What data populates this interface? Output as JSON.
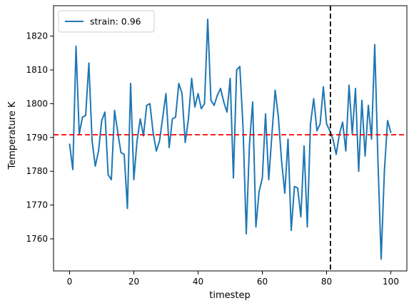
{
  "chart_data": {
    "type": "line",
    "title": "",
    "xlabel": "timestep",
    "ylabel": "Temperature K",
    "xlim": [
      -5,
      105
    ],
    "ylim": [
      1750.5,
      1829
    ],
    "xticks": [
      0,
      20,
      40,
      60,
      80,
      100
    ],
    "yticks": [
      1760,
      1770,
      1780,
      1790,
      1800,
      1810,
      1820
    ],
    "grid": false,
    "legend_position": "top-left",
    "series": [
      {
        "name": "strain: 0.96",
        "color": "#1f77b4",
        "x": [
          0,
          1,
          2,
          3,
          4,
          5,
          6,
          7,
          8,
          9,
          10,
          11,
          12,
          13,
          14,
          15,
          16,
          17,
          18,
          19,
          20,
          21,
          22,
          23,
          24,
          25,
          26,
          27,
          28,
          29,
          30,
          31,
          32,
          33,
          34,
          35,
          36,
          37,
          38,
          39,
          40,
          41,
          42,
          43,
          44,
          45,
          46,
          47,
          48,
          49,
          50,
          51,
          52,
          53,
          54,
          55,
          56,
          57,
          58,
          59,
          60,
          61,
          62,
          63,
          64,
          65,
          66,
          67,
          68,
          69,
          70,
          71,
          72,
          73,
          74,
          75,
          76,
          77,
          78,
          79,
          80,
          81,
          82,
          83,
          84,
          85,
          86,
          87,
          88,
          89,
          90,
          91,
          92,
          93,
          94,
          95,
          96,
          97,
          98,
          99,
          100
        ],
        "y": [
          1788,
          1780.5,
          1817,
          1791,
          1796,
          1796.5,
          1812,
          1789,
          1781.5,
          1786,
          1795,
          1797.5,
          1779,
          1777.5,
          1798,
          1791.5,
          1785.5,
          1785,
          1769,
          1806,
          1777.5,
          1789,
          1795.5,
          1790.5,
          1799.5,
          1800,
          1791.5,
          1786,
          1789,
          1796,
          1803,
          1787,
          1795.5,
          1796,
          1806,
          1803,
          1788.5,
          1795.5,
          1807.5,
          1799,
          1803,
          1798.5,
          1800,
          1825,
          1801,
          1799.5,
          1802.5,
          1804.5,
          1800.5,
          1797.5,
          1807.5,
          1778,
          1810,
          1811,
          1793,
          1761.5,
          1788,
          1800.5,
          1763.5,
          1774,
          1778,
          1797,
          1777.5,
          1791,
          1804,
          1796,
          1783,
          1773.5,
          1789.5,
          1762.5,
          1775.5,
          1775,
          1766.5,
          1787.5,
          1763.5,
          1794,
          1801.5,
          1792,
          1794,
          1805,
          1794,
          1792,
          1789.5,
          1785,
          1791,
          1794.5,
          1786,
          1805.5,
          1791,
          1804.5,
          1780,
          1801,
          1784.5,
          1799.5,
          1789.5,
          1817.5,
          1783,
          1754,
          1780,
          1795,
          1791.5
        ]
      }
    ],
    "reference_lines": [
      {
        "orientation": "horizontal",
        "value": 1790.8,
        "color": "#ff0000",
        "style": "dashed"
      },
      {
        "orientation": "vertical",
        "value": 81.2,
        "color": "#000000",
        "style": "dashed"
      }
    ]
  }
}
